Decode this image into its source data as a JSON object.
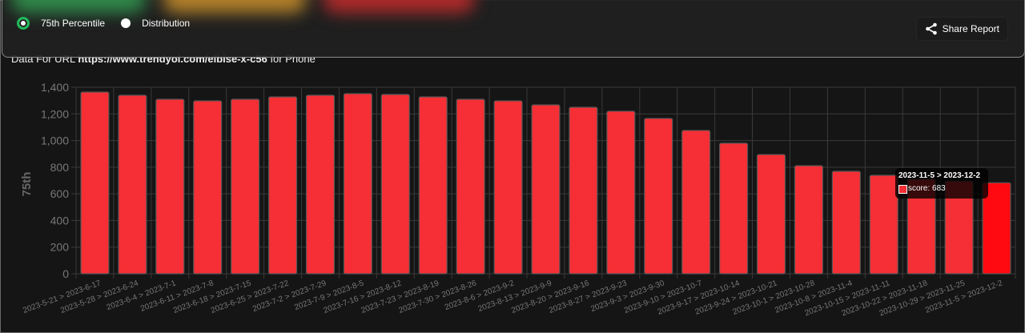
{
  "controls": {
    "options": [
      {
        "label": "75th Percentile",
        "selected": true
      },
      {
        "label": "Distribution",
        "selected": false
      }
    ],
    "share_label": "Share Report",
    "share_icon": "share-icon"
  },
  "title": {
    "prefix": "Data For URL",
    "url": "https://www.trendyol.com/elbise-x-c56",
    "suffix": "for Phone"
  },
  "tooltip": {
    "title": "2023-11-5 > 2023-12-2",
    "label": "score: 683"
  },
  "colors": {
    "bar": "#f52f35",
    "bar_highlight": "#ff0a10",
    "accent": "#1fb85a"
  },
  "chart_data": {
    "type": "bar",
    "ylabel": "75th",
    "ylim": [
      0,
      1400
    ],
    "yticks": [
      "0",
      "200",
      "400",
      "600",
      "800",
      "1,000",
      "1,200",
      "1,400"
    ],
    "grid": true,
    "categories": [
      "2023-5-21 > 2023-6-17",
      "2023-5-28 > 2023-6-24",
      "2023-6-4 > 2023-7-1",
      "2023-6-11 > 2023-7-8",
      "2023-6-18 > 2023-7-15",
      "2023-6-25 > 2023-7-22",
      "2023-7-2 > 2023-7-29",
      "2023-7-9 > 2023-8-5",
      "2023-7-16 > 2023-8-12",
      "2023-7-23 > 2023-8-19",
      "2023-7-30 > 2023-8-26",
      "2023-8-6 > 2023-9-2",
      "2023-8-13 > 2023-9-9",
      "2023-8-20 > 2023-9-16",
      "2023-8-27 > 2023-9-23",
      "2023-9-3 > 2023-9-30",
      "2023-9-10 > 2023-10-7",
      "2023-9-17 > 2023-10-14",
      "2023-9-24 > 2023-10-21",
      "2023-10-1 > 2023-10-28",
      "2023-10-8 > 2023-11-4",
      "2023-10-15 > 2023-11-11",
      "2023-10-22 > 2023-11-18",
      "2023-10-29 > 2023-11-25",
      "2023-11-5 > 2023-12-2"
    ],
    "series": [
      {
        "name": "score",
        "values": [
          1364,
          1340,
          1310,
          1298,
          1310,
          1328,
          1340,
          1352,
          1346,
          1328,
          1310,
          1298,
          1268,
          1250,
          1220,
          1166,
          1076,
          980,
          895,
          811,
          769,
          739,
          710,
          695,
          683
        ]
      }
    ],
    "highlighted_index": 24
  }
}
